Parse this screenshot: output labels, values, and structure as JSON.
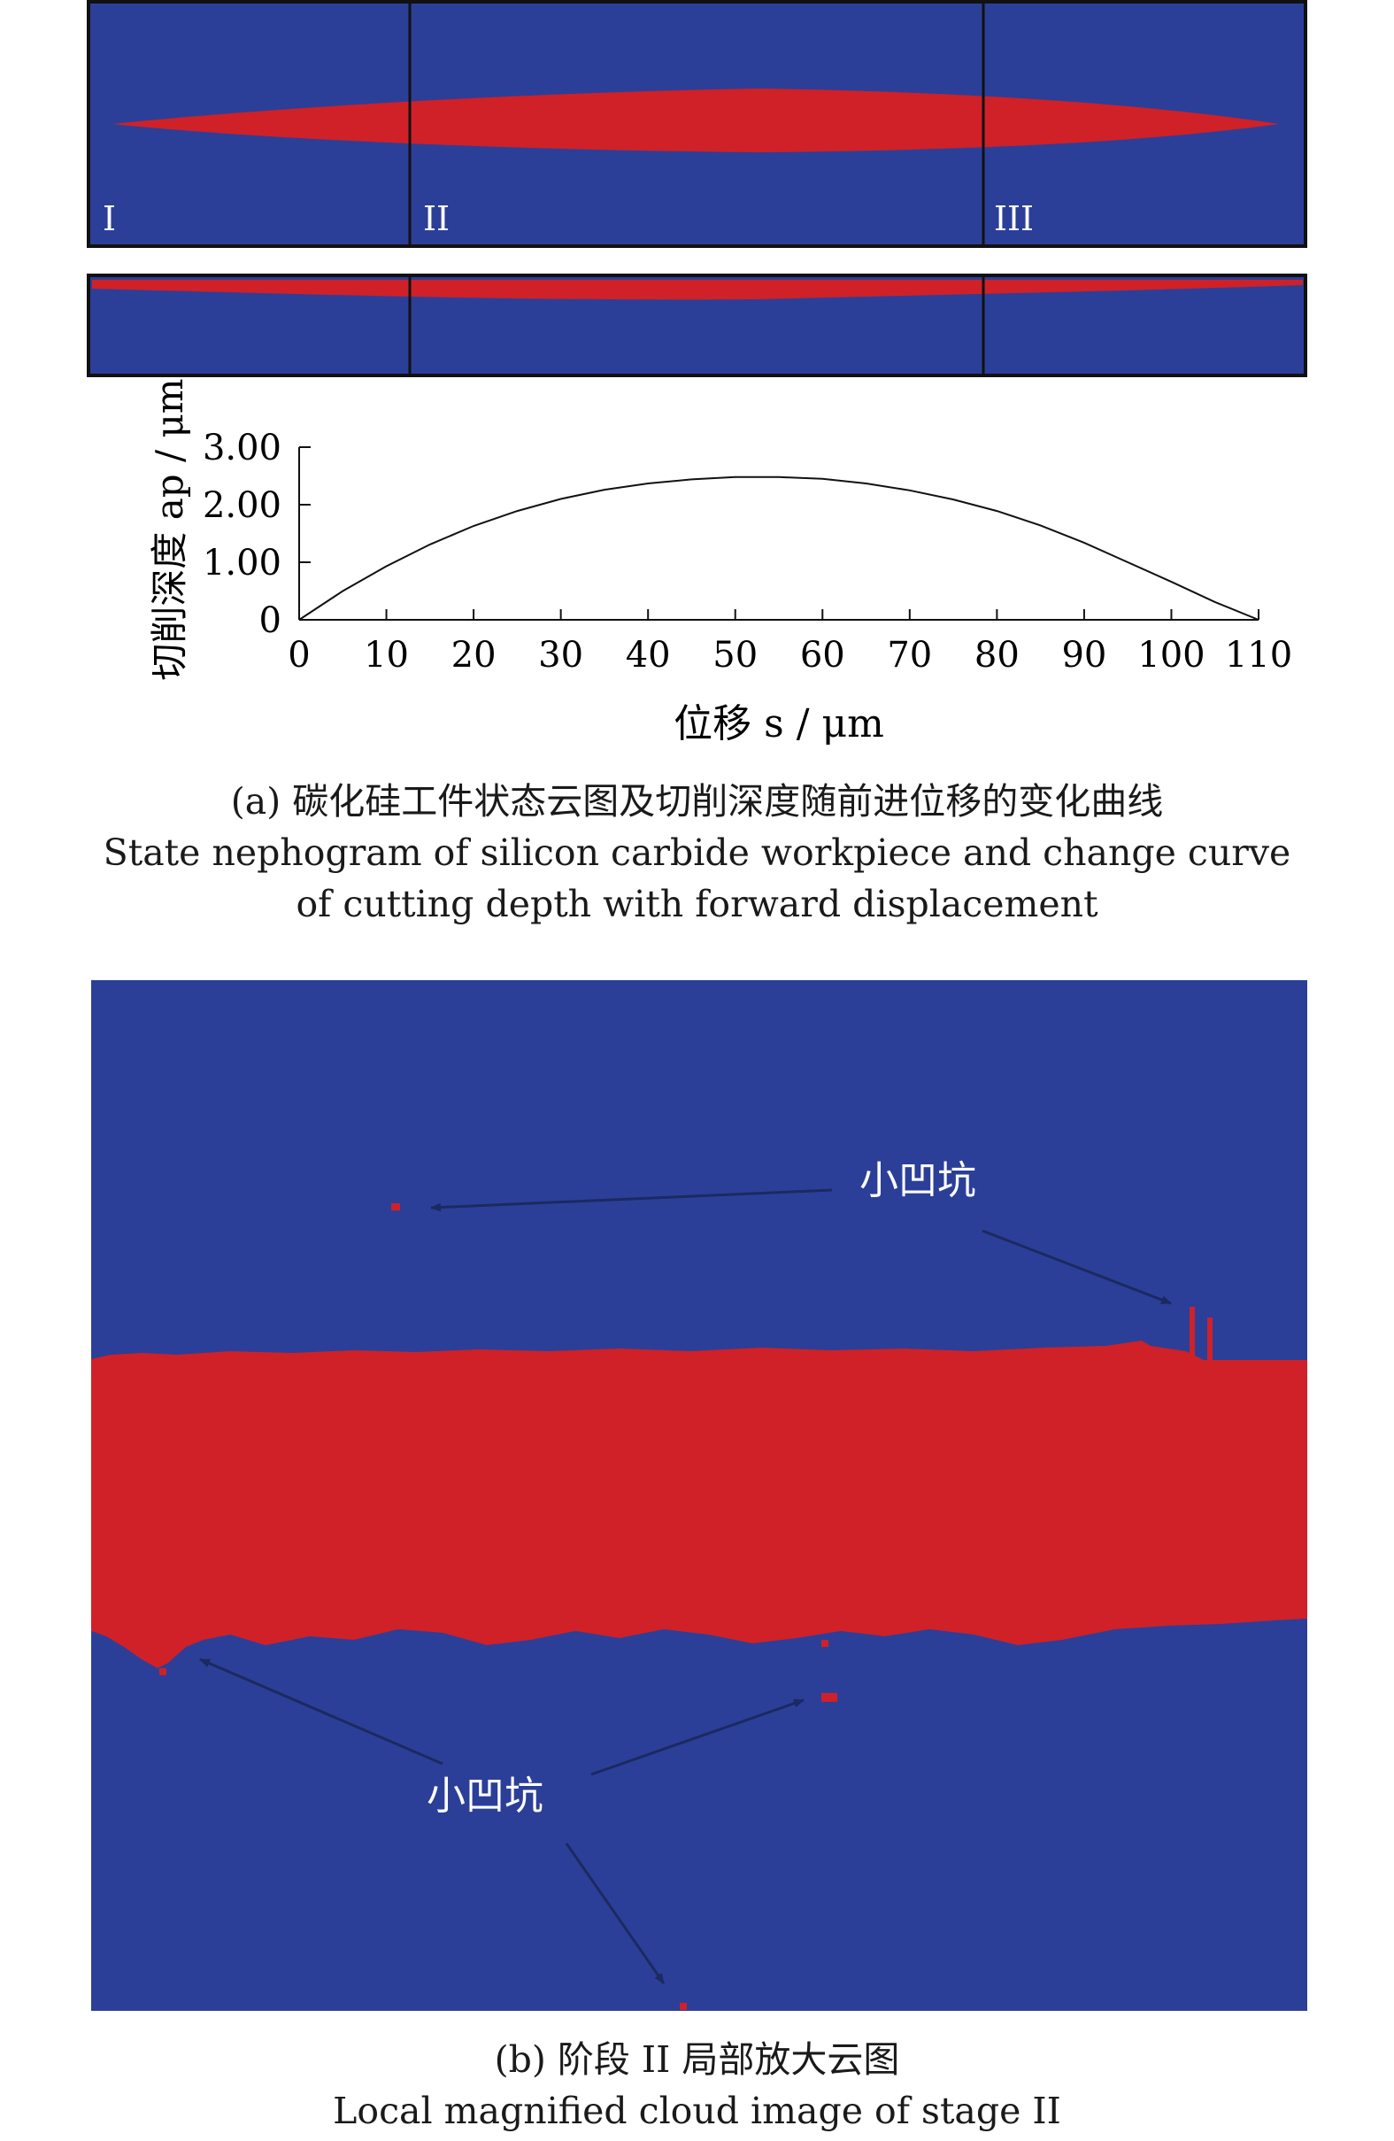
{
  "colors": {
    "substrate": "#2b3f98",
    "chip": "#cf2127",
    "frame": "#111111",
    "curve": "#111111",
    "arrow": "#1b2a60",
    "label_light": "#ffffff"
  },
  "figure_a": {
    "stage_labels": [
      "I",
      "II",
      "III"
    ],
    "caption_cn": "(a) 碳化硅工件状态云图及切削深度随前进位移的变化曲线",
    "caption_en_1": "State nephogram of silicon carbide workpiece and change curve",
    "caption_en_2": "of cutting depth with forward displacement"
  },
  "chart_data": {
    "type": "line",
    "xlabel": "位移 s / μm",
    "ylabel": "切削深度 ap / μm",
    "x_ticks": [
      "0",
      "10",
      "20",
      "30",
      "40",
      "50",
      "60",
      "70",
      "80",
      "90",
      "100",
      "110"
    ],
    "y_ticks": [
      "0",
      "1.00",
      "2.00",
      "3.00"
    ],
    "xlim": [
      0,
      110
    ],
    "ylim": [
      0,
      3
    ],
    "grid": false,
    "series": [
      {
        "x": [
          0,
          5,
          10,
          15,
          20,
          25,
          30,
          35,
          40,
          45,
          50,
          55,
          60,
          65,
          70,
          75,
          80,
          85,
          90,
          95,
          100,
          105,
          110
        ],
        "values": [
          0,
          0.5,
          0.93,
          1.31,
          1.63,
          1.89,
          2.1,
          2.26,
          2.37,
          2.44,
          2.48,
          2.48,
          2.45,
          2.37,
          2.25,
          2.09,
          1.89,
          1.64,
          1.34,
          1.0,
          0.66,
          0.31,
          0
        ]
      }
    ]
  },
  "figure_b": {
    "pit_label_top": "小凹坑",
    "pit_label_bottom": "小凹坑",
    "caption_cn": "(b) 阶段 II 局部放大云图",
    "caption_en": "Local magnified cloud image of stage II"
  }
}
